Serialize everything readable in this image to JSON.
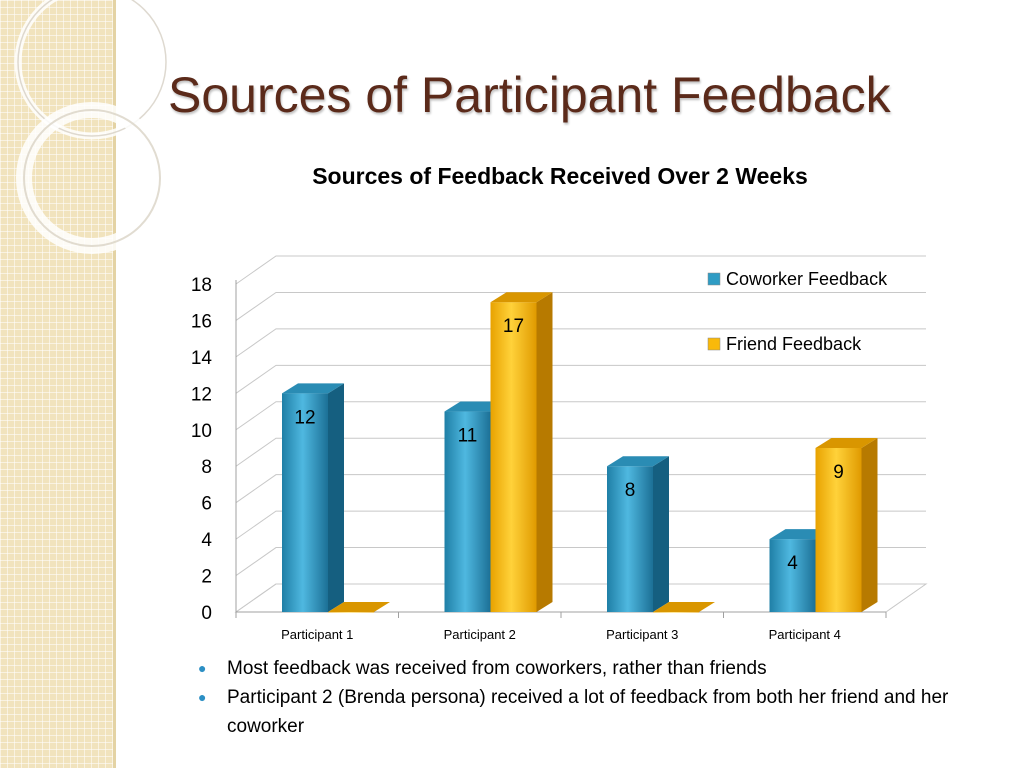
{
  "slide": {
    "title": "Sources of Participant Feedback",
    "bullets": [
      "Most feedback was received from coworkers, rather than friends",
      "Participant 2 (Brenda persona) received a lot of feedback from both her friend and her coworker"
    ]
  },
  "colors": {
    "coworker": "#2f9cc4",
    "friend": "#f9b90a",
    "title": "#5b2a1a",
    "bullet": "#2c8fc4"
  },
  "chart_data": {
    "type": "bar",
    "title": "Sources of Feedback Received Over 2 Weeks",
    "categories": [
      "Participant 1",
      "Participant 2",
      "Participant 3",
      "Participant 4"
    ],
    "series": [
      {
        "name": "Coworker Feedback",
        "values": [
          12,
          11,
          8,
          4
        ],
        "labels": [
          "12",
          "11",
          "8",
          "4"
        ]
      },
      {
        "name": "Friend Feedback",
        "values": [
          0,
          17,
          0,
          9
        ],
        "labels": [
          "",
          "17",
          "",
          "9"
        ]
      }
    ],
    "yticks": [
      "0",
      "2",
      "4",
      "6",
      "8",
      "10",
      "12",
      "14",
      "16",
      "18"
    ],
    "ylim": [
      0,
      18
    ],
    "grid": true,
    "style": "3d",
    "legend": "top-right"
  }
}
